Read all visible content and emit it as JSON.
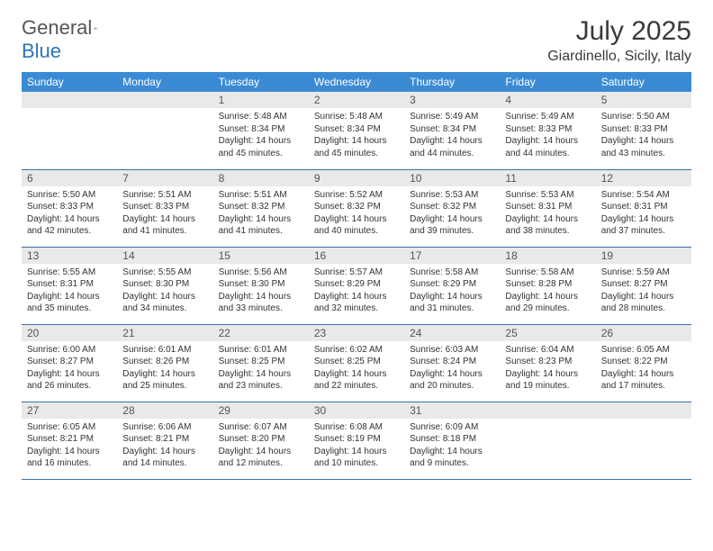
{
  "brand": {
    "part1": "General",
    "part2": "Blue"
  },
  "title": "July 2025",
  "location": "Giardinello, Sicily, Italy",
  "colors": {
    "header_bg": "#3b8bd4",
    "header_text": "#ffffff",
    "daynum_bg": "#e9e9e9",
    "border": "#3b6fa8",
    "brand_blue": "#2e74b5",
    "text": "#333333"
  },
  "weekdays": [
    "Sunday",
    "Monday",
    "Tuesday",
    "Wednesday",
    "Thursday",
    "Friday",
    "Saturday"
  ],
  "weeks": [
    [
      null,
      null,
      {
        "n": "1",
        "sr": "5:48 AM",
        "ss": "8:34 PM",
        "dl": "14 hours and 45 minutes."
      },
      {
        "n": "2",
        "sr": "5:48 AM",
        "ss": "8:34 PM",
        "dl": "14 hours and 45 minutes."
      },
      {
        "n": "3",
        "sr": "5:49 AM",
        "ss": "8:34 PM",
        "dl": "14 hours and 44 minutes."
      },
      {
        "n": "4",
        "sr": "5:49 AM",
        "ss": "8:33 PM",
        "dl": "14 hours and 44 minutes."
      },
      {
        "n": "5",
        "sr": "5:50 AM",
        "ss": "8:33 PM",
        "dl": "14 hours and 43 minutes."
      }
    ],
    [
      {
        "n": "6",
        "sr": "5:50 AM",
        "ss": "8:33 PM",
        "dl": "14 hours and 42 minutes."
      },
      {
        "n": "7",
        "sr": "5:51 AM",
        "ss": "8:33 PM",
        "dl": "14 hours and 41 minutes."
      },
      {
        "n": "8",
        "sr": "5:51 AM",
        "ss": "8:32 PM",
        "dl": "14 hours and 41 minutes."
      },
      {
        "n": "9",
        "sr": "5:52 AM",
        "ss": "8:32 PM",
        "dl": "14 hours and 40 minutes."
      },
      {
        "n": "10",
        "sr": "5:53 AM",
        "ss": "8:32 PM",
        "dl": "14 hours and 39 minutes."
      },
      {
        "n": "11",
        "sr": "5:53 AM",
        "ss": "8:31 PM",
        "dl": "14 hours and 38 minutes."
      },
      {
        "n": "12",
        "sr": "5:54 AM",
        "ss": "8:31 PM",
        "dl": "14 hours and 37 minutes."
      }
    ],
    [
      {
        "n": "13",
        "sr": "5:55 AM",
        "ss": "8:31 PM",
        "dl": "14 hours and 35 minutes."
      },
      {
        "n": "14",
        "sr": "5:55 AM",
        "ss": "8:30 PM",
        "dl": "14 hours and 34 minutes."
      },
      {
        "n": "15",
        "sr": "5:56 AM",
        "ss": "8:30 PM",
        "dl": "14 hours and 33 minutes."
      },
      {
        "n": "16",
        "sr": "5:57 AM",
        "ss": "8:29 PM",
        "dl": "14 hours and 32 minutes."
      },
      {
        "n": "17",
        "sr": "5:58 AM",
        "ss": "8:29 PM",
        "dl": "14 hours and 31 minutes."
      },
      {
        "n": "18",
        "sr": "5:58 AM",
        "ss": "8:28 PM",
        "dl": "14 hours and 29 minutes."
      },
      {
        "n": "19",
        "sr": "5:59 AM",
        "ss": "8:27 PM",
        "dl": "14 hours and 28 minutes."
      }
    ],
    [
      {
        "n": "20",
        "sr": "6:00 AM",
        "ss": "8:27 PM",
        "dl": "14 hours and 26 minutes."
      },
      {
        "n": "21",
        "sr": "6:01 AM",
        "ss": "8:26 PM",
        "dl": "14 hours and 25 minutes."
      },
      {
        "n": "22",
        "sr": "6:01 AM",
        "ss": "8:25 PM",
        "dl": "14 hours and 23 minutes."
      },
      {
        "n": "23",
        "sr": "6:02 AM",
        "ss": "8:25 PM",
        "dl": "14 hours and 22 minutes."
      },
      {
        "n": "24",
        "sr": "6:03 AM",
        "ss": "8:24 PM",
        "dl": "14 hours and 20 minutes."
      },
      {
        "n": "25",
        "sr": "6:04 AM",
        "ss": "8:23 PM",
        "dl": "14 hours and 19 minutes."
      },
      {
        "n": "26",
        "sr": "6:05 AM",
        "ss": "8:22 PM",
        "dl": "14 hours and 17 minutes."
      }
    ],
    [
      {
        "n": "27",
        "sr": "6:05 AM",
        "ss": "8:21 PM",
        "dl": "14 hours and 16 minutes."
      },
      {
        "n": "28",
        "sr": "6:06 AM",
        "ss": "8:21 PM",
        "dl": "14 hours and 14 minutes."
      },
      {
        "n": "29",
        "sr": "6:07 AM",
        "ss": "8:20 PM",
        "dl": "14 hours and 12 minutes."
      },
      {
        "n": "30",
        "sr": "6:08 AM",
        "ss": "8:19 PM",
        "dl": "14 hours and 10 minutes."
      },
      {
        "n": "31",
        "sr": "6:09 AM",
        "ss": "8:18 PM",
        "dl": "14 hours and 9 minutes."
      },
      null,
      null
    ]
  ],
  "labels": {
    "sunrise": "Sunrise:",
    "sunset": "Sunset:",
    "daylight": "Daylight:"
  }
}
